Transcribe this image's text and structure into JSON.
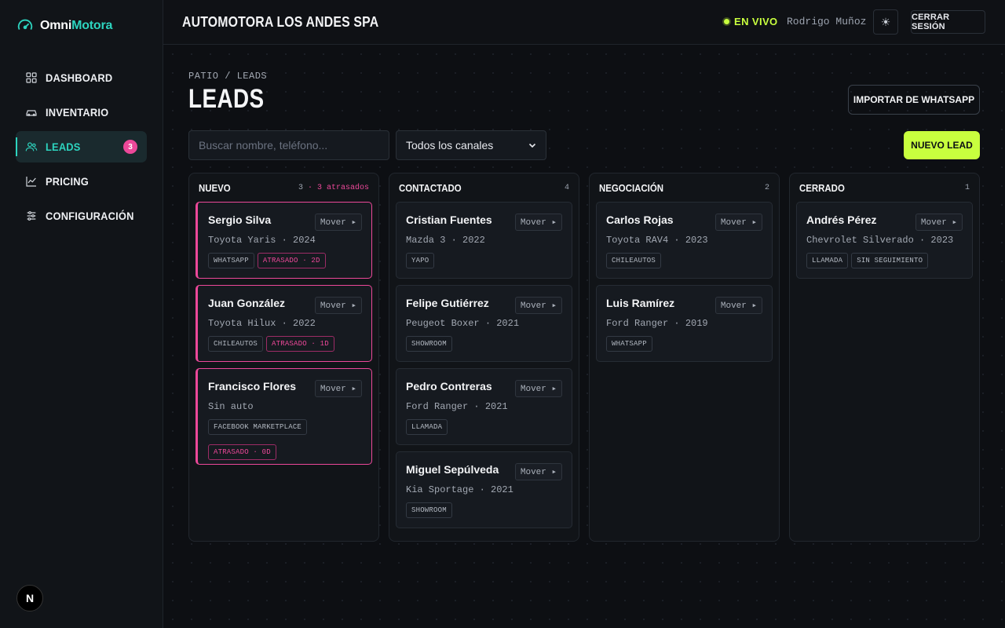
{
  "brand": {
    "part1": "Omni",
    "part2": "Motora"
  },
  "sidebar": {
    "items": [
      {
        "label": "DASHBOARD",
        "icon": "grid-icon"
      },
      {
        "label": "INVENTARIO",
        "icon": "car-icon"
      },
      {
        "label": "LEADS",
        "icon": "users-icon",
        "badge": "3",
        "active": true
      },
      {
        "label": "PRICING",
        "icon": "chart-line-icon"
      },
      {
        "label": "CONFIGURACIÓN",
        "icon": "sliders-icon"
      }
    ],
    "footer_avatar": "N"
  },
  "topbar": {
    "company": "AUTOMOTORA LOS ANDES SPA",
    "live": "EN VIVO",
    "user": "Rodrigo Muñoz",
    "theme_icon": "☀",
    "logout": "CERRAR SESIÓN"
  },
  "main": {
    "breadcrumb": "PATIO / LEADS",
    "title": "LEADS",
    "import_button": "IMPORTAR DE WHATSAPP",
    "search_placeholder": "Buscar nombre, teléfono...",
    "channel_filter": "Todos los canales",
    "new_button": "NUEVO LEAD",
    "move_label": "Mover ▸"
  },
  "colors": {
    "accent": "#2dd4bf",
    "lime": "#c8ff3e",
    "pink": "#ec4899"
  },
  "columns": [
    {
      "title": "NUEVO",
      "count": "3",
      "late_note": "· 3 atrasados",
      "cards": [
        {
          "name": "Sergio Silva",
          "car": "Toyota Yaris · 2024",
          "tags": [
            "WHATSAPP"
          ],
          "late": "ATRASADO · 2D"
        },
        {
          "name": "Juan González",
          "car": "Toyota Hilux · 2022",
          "tags": [
            "CHILEAUTOS"
          ],
          "late": "ATRASADO · 1D"
        },
        {
          "name": "Francisco Flores",
          "car": "Sin auto",
          "tags": [
            "FACEBOOK MARKETPLACE"
          ],
          "late": "ATRASADO · 0D"
        }
      ]
    },
    {
      "title": "CONTACTADO",
      "count": "4",
      "late_note": "",
      "cards": [
        {
          "name": "Cristian Fuentes",
          "car": "Mazda 3 · 2022",
          "tags": [
            "YAPO"
          ]
        },
        {
          "name": "Felipe Gutiérrez",
          "car": "Peugeot Boxer · 2021",
          "tags": [
            "SHOWROOM"
          ]
        },
        {
          "name": "Pedro Contreras",
          "car": "Ford Ranger · 2021",
          "tags": [
            "LLAMADA"
          ]
        },
        {
          "name": "Miguel Sepúlveda",
          "car": "Kia Sportage · 2021",
          "tags": [
            "SHOWROOM"
          ]
        }
      ]
    },
    {
      "title": "NEGOCIACIÓN",
      "count": "2",
      "late_note": "",
      "cards": [
        {
          "name": "Carlos Rojas",
          "car": "Toyota RAV4 · 2023",
          "tags": [
            "CHILEAUTOS"
          ]
        },
        {
          "name": "Luis Ramírez",
          "car": "Ford Ranger · 2019",
          "tags": [
            "WHATSAPP"
          ]
        }
      ]
    },
    {
      "title": "CERRADO",
      "count": "1",
      "late_note": "",
      "cards": [
        {
          "name": "Andrés Pérez",
          "car": "Chevrolet Silverado · 2023",
          "tags": [
            "LLAMADA",
            "SIN SEGUIMIENTO"
          ]
        }
      ]
    }
  ]
}
